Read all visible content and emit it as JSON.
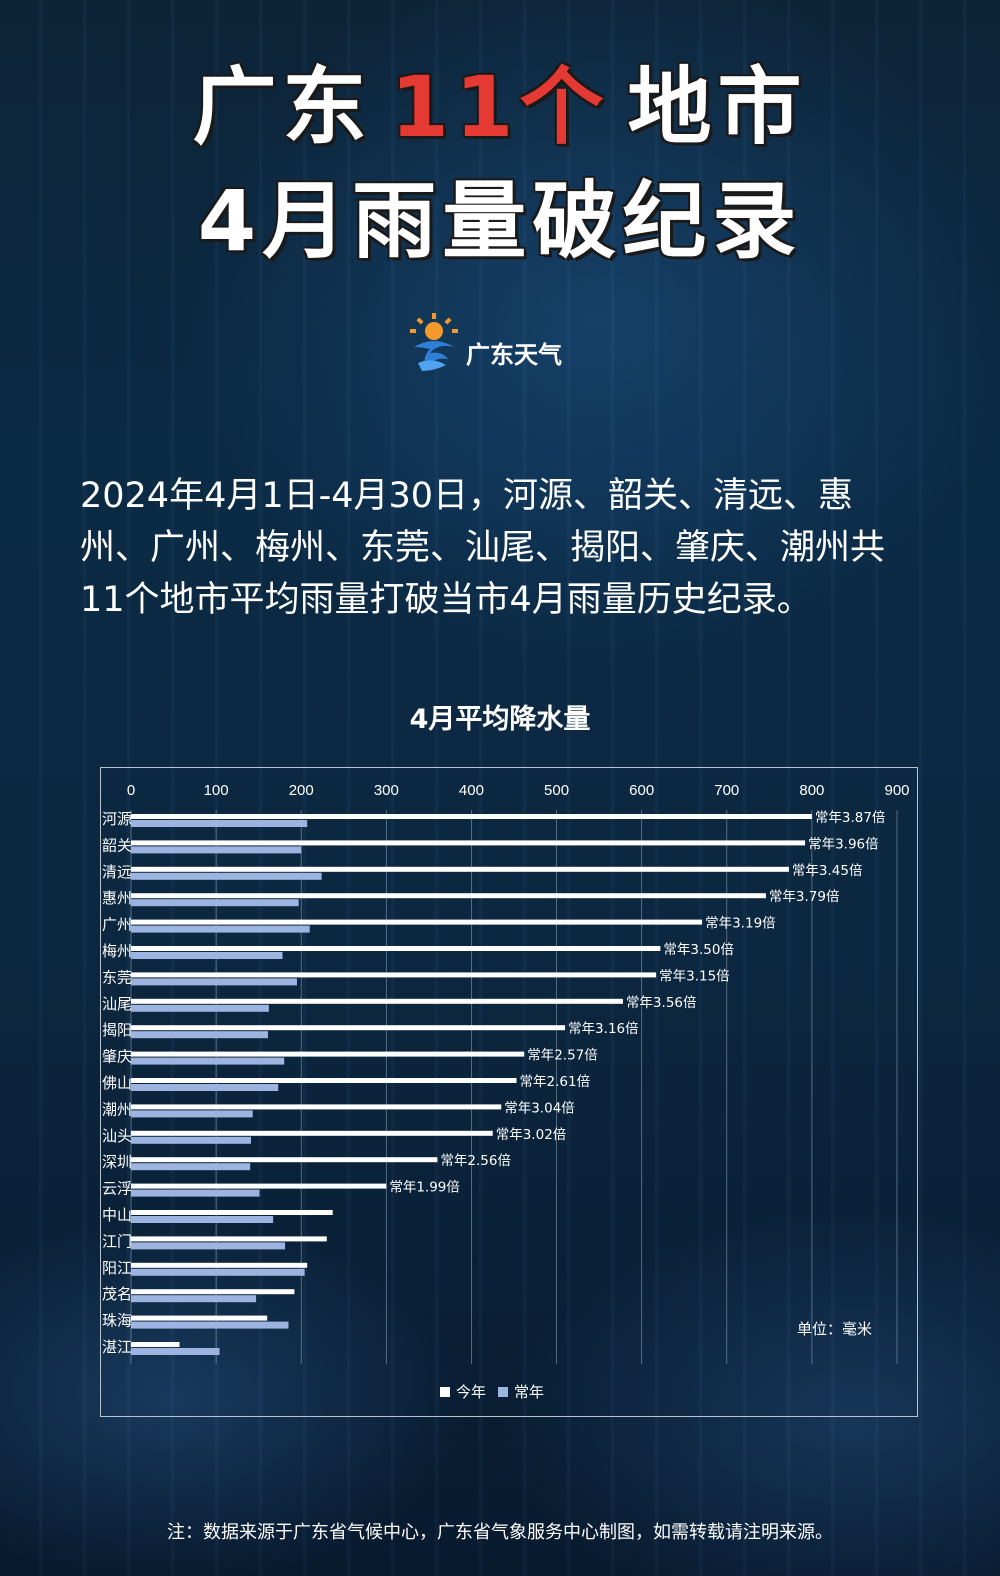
{
  "header": {
    "title_part1": "广东",
    "title_accent": "11个",
    "title_part2": "地市",
    "title_line2": "4月雨量破纪录",
    "accent_color": "#e53a34"
  },
  "logo": {
    "text": "广东天气",
    "icon": "sun-wave-logo-icon"
  },
  "intro_text": "2024年4月1日-4月30日，河源、韶关、清远、惠州、广州、梅州、东莞、汕尾、揭阳、肇庆、潮州共11个地市平均雨量打破当市4月雨量历史纪录。",
  "chart_data": {
    "type": "bar",
    "orientation": "horizontal",
    "title": "4月平均降水量",
    "unit_label": "单位：毫米",
    "xlim": [
      0,
      900
    ],
    "xticks": [
      "0",
      "100",
      "200",
      "300",
      "400",
      "500",
      "600",
      "700",
      "800",
      "900"
    ],
    "grid": true,
    "legend_position": "bottom",
    "categories": [
      "河源",
      "韶关",
      "清远",
      "惠州",
      "广州",
      "梅州",
      "东莞",
      "汕尾",
      "揭阳",
      "肇庆",
      "佛山",
      "潮州",
      "汕头",
      "深圳",
      "云浮",
      "中山",
      "江门",
      "阳江",
      "茂名",
      "珠海",
      "湛江"
    ],
    "series": [
      {
        "name": "今年",
        "color": "#ffffff",
        "values": [
          800,
          792,
          773,
          746,
          671,
          622,
          617,
          578,
          510,
          462,
          453,
          435,
          425,
          360,
          300,
          237,
          230,
          207,
          192,
          160,
          57
        ]
      },
      {
        "name": "常年",
        "color": "#9db4e0",
        "values": [
          207,
          200,
          224,
          197,
          210,
          178,
          195,
          162,
          161,
          180,
          173,
          143,
          141,
          140,
          151,
          167,
          181,
          204,
          147,
          185,
          104
        ]
      }
    ],
    "annotations": [
      "常年3.87倍",
      "常年3.96倍",
      "常年3.45倍",
      "常年3.79倍",
      "常年3.19倍",
      "常年3.50倍",
      "常年3.15倍",
      "常年3.56倍",
      "常年3.16倍",
      "常年2.57倍",
      "常年2.61倍",
      "常年3.04倍",
      "常年3.02倍",
      "常年2.56倍",
      "常年1.99倍",
      "",
      "",
      "",
      "",
      "",
      ""
    ]
  },
  "footnote": "注：数据来源于广东省气候中心，广东省气象服务中心制图，如需转载请注明来源。"
}
